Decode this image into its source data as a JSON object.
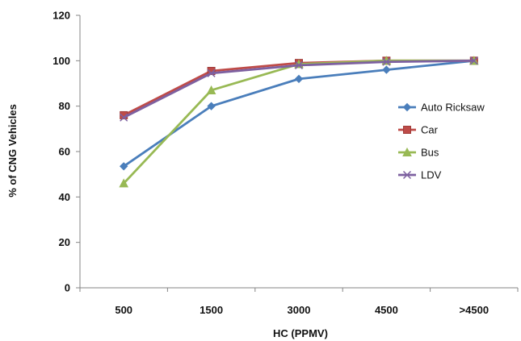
{
  "chart_data": {
    "type": "line",
    "title": "",
    "xlabel": "HC (PPMV)",
    "ylabel": "% of CNG Vehicles",
    "categories": [
      "500",
      "1500",
      "3000",
      "4500",
      ">4500"
    ],
    "ylim": [
      0,
      120
    ],
    "yticks": [
      "0",
      "20",
      "40",
      "60",
      "80",
      "100",
      "120"
    ],
    "grid": false,
    "legend_position": "right",
    "series": [
      {
        "name": "Auto Ricksaw",
        "values": [
          53.5,
          80,
          92,
          96,
          100
        ],
        "color": "#4a7ebb",
        "marker": "diamond"
      },
      {
        "name": "Car",
        "values": [
          76,
          95.5,
          99,
          100,
          100
        ],
        "color": "#be4b48",
        "marker": "square"
      },
      {
        "name": "Bus",
        "values": [
          46,
          87,
          98.5,
          100,
          100
        ],
        "color": "#98b954",
        "marker": "triangle"
      },
      {
        "name": "LDV",
        "values": [
          75,
          94.5,
          98,
          99.5,
          100
        ],
        "color": "#7d60a0",
        "marker": "x"
      }
    ]
  }
}
